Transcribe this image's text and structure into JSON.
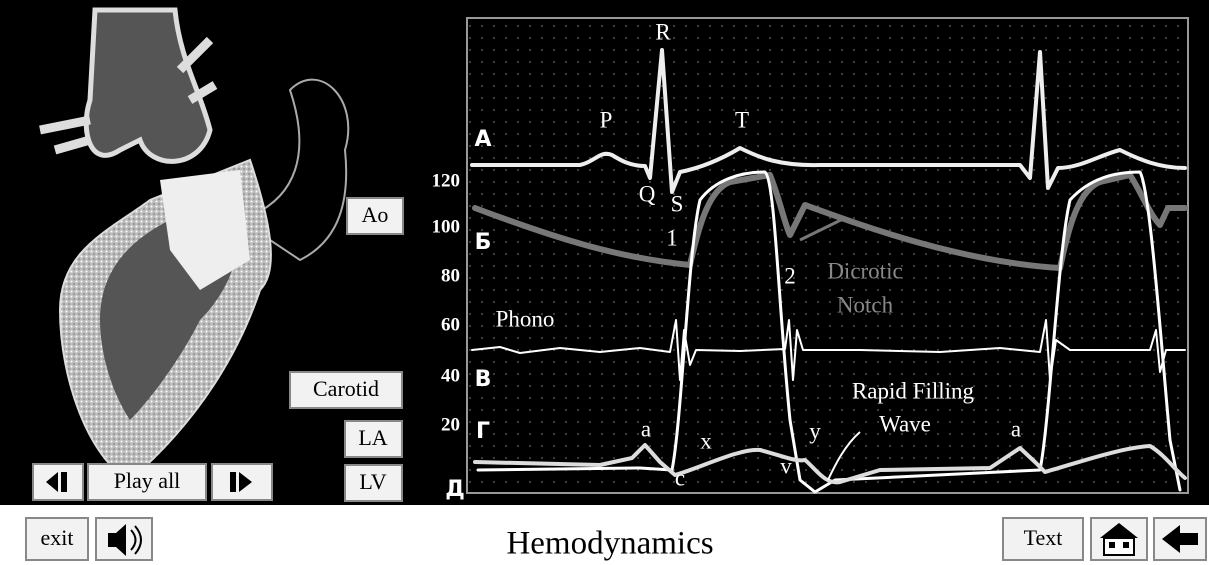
{
  "toolbar": {
    "exit": "exit",
    "title": "Hemodynamics",
    "text_button": "Text"
  },
  "player": {
    "play_all": "Play all"
  },
  "buttons": [
    "Ao",
    "Carotid",
    "LA",
    "LV"
  ],
  "axis_ticks": [
    120,
    100,
    80,
    60,
    40,
    20
  ],
  "trace_labels": [
    "А",
    "Б",
    "В",
    "Г",
    "Д"
  ],
  "annotations": [
    "P",
    "R",
    "T",
    "Q",
    "S",
    "1",
    "2",
    "Dicrotic",
    "Notch",
    "Phono",
    "Rapid Filling",
    "Wave",
    "a",
    "x",
    "c",
    "y",
    "v",
    "a"
  ]
}
